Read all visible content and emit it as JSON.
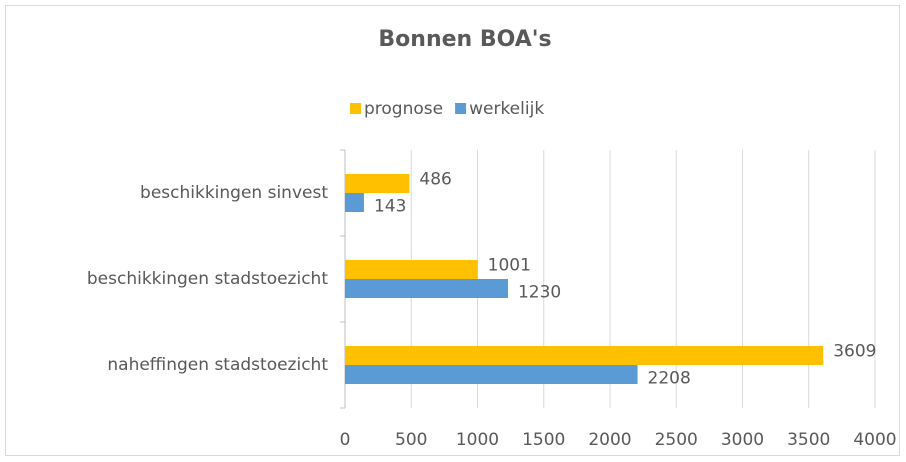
{
  "chart_data": {
    "type": "barh",
    "title": "Bonnen BOA's",
    "categories": [
      "beschikkingen sinvest",
      "beschikkingen stadstoezicht",
      "naheffingen stadstoezicht"
    ],
    "series": [
      {
        "name": "prognose",
        "color": "#ffc000",
        "values": [
          486,
          1001,
          3609
        ]
      },
      {
        "name": "werkelijk",
        "color": "#5b9bd5",
        "values": [
          143,
          1230,
          2208
        ]
      }
    ],
    "xlim": [
      0,
      4000
    ],
    "xticks": [
      0,
      500,
      1000,
      1500,
      2000,
      2500,
      3000,
      3500,
      4000
    ],
    "grid": true,
    "legend": "top"
  }
}
